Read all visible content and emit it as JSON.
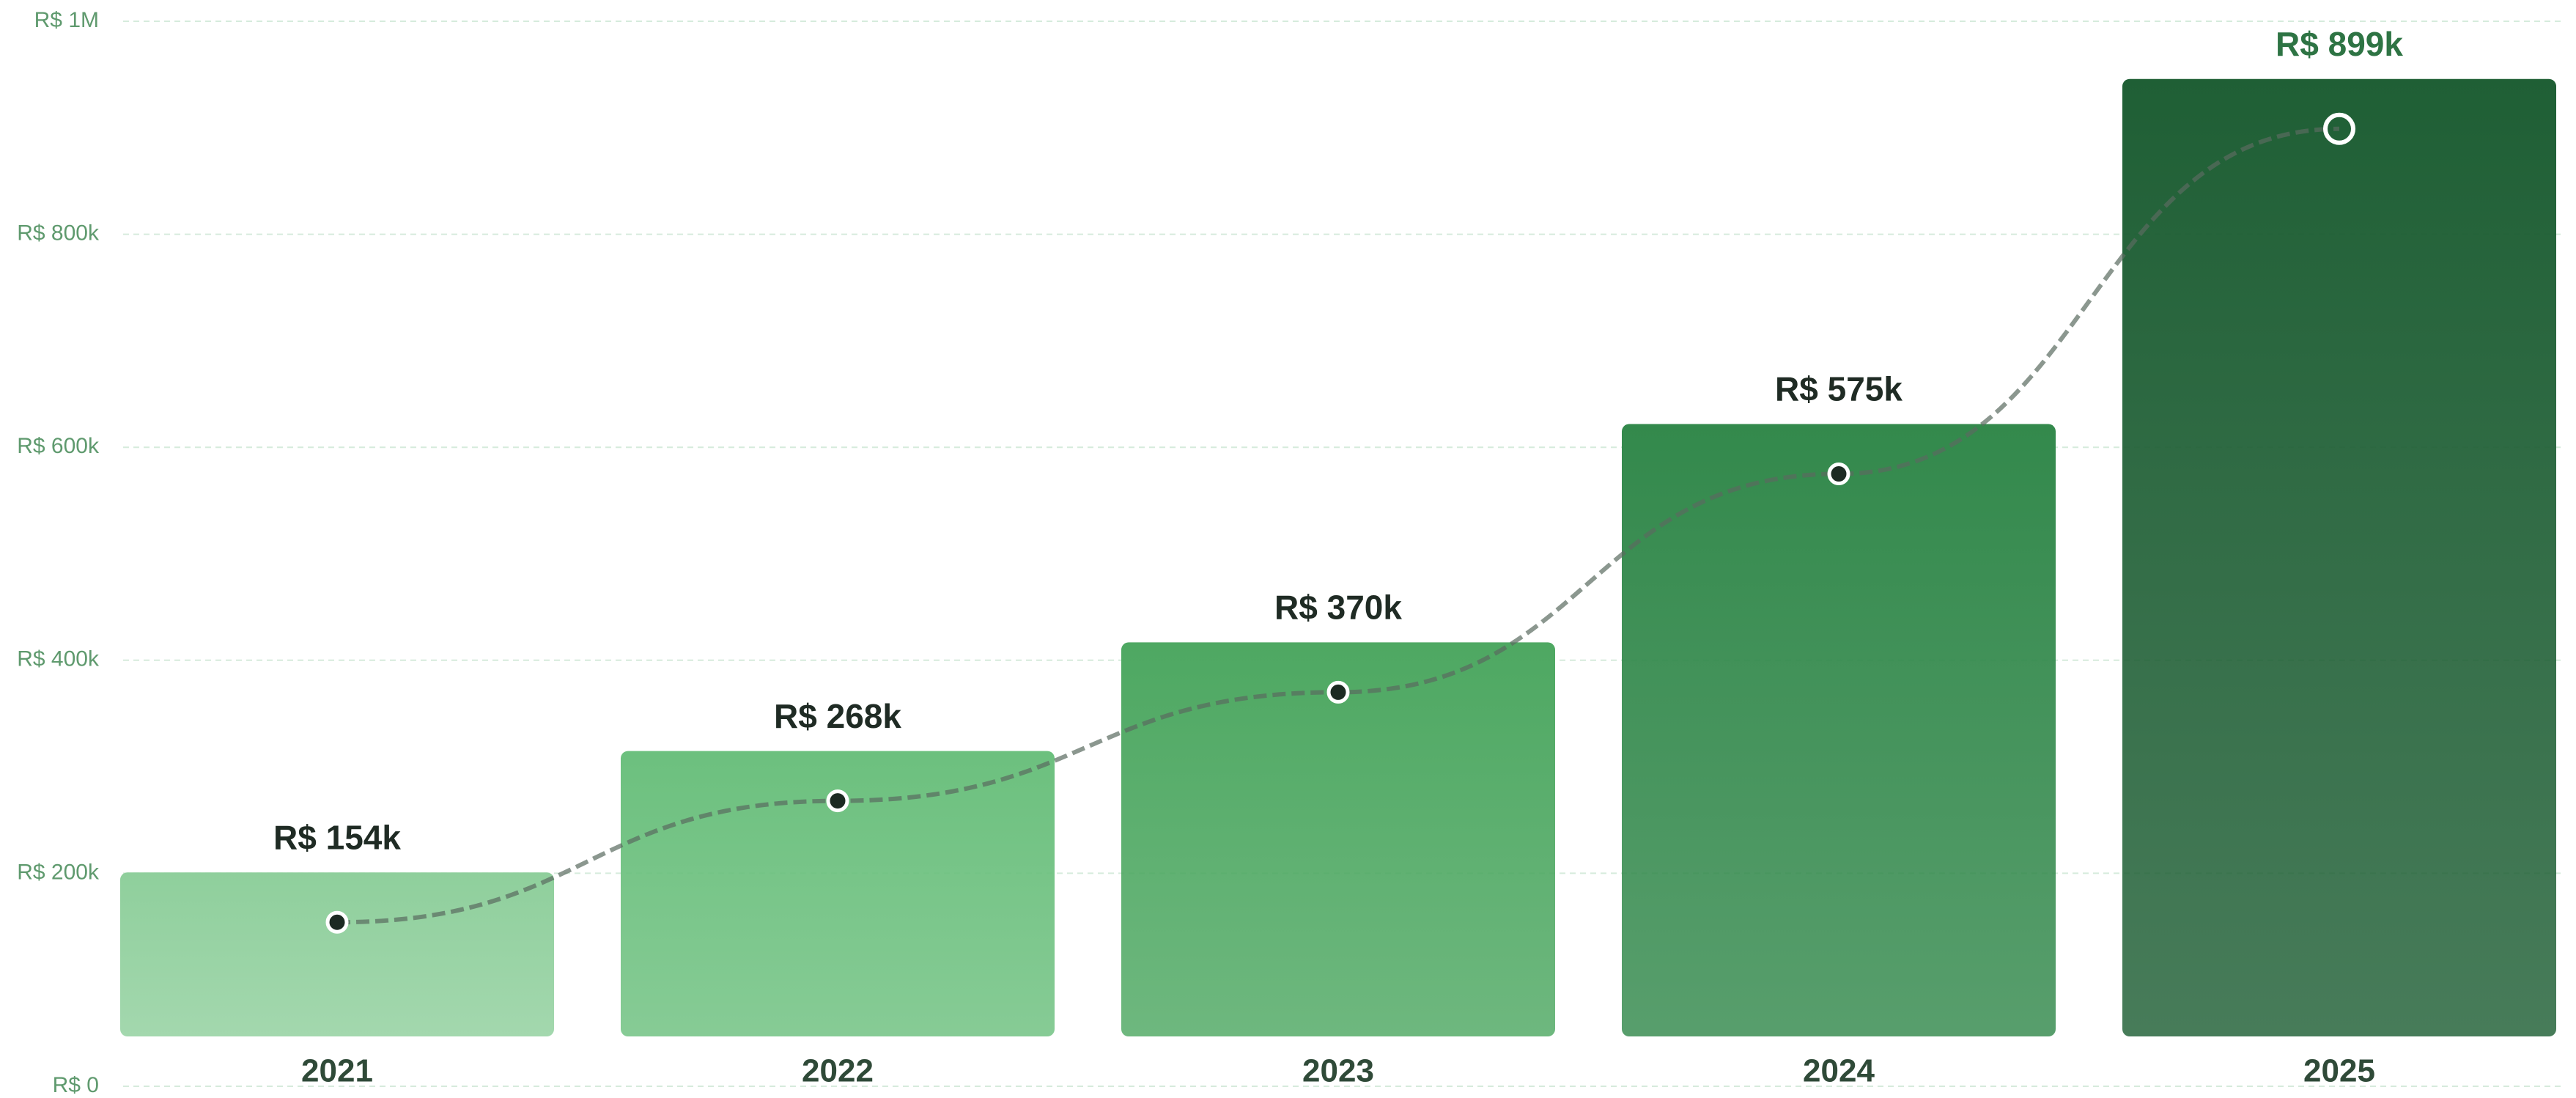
{
  "chart_data": {
    "type": "bar",
    "categories": [
      "2021",
      "2022",
      "2023",
      "2024",
      "2025"
    ],
    "values": [
      154000,
      268000,
      370000,
      575000,
      899000
    ],
    "value_labels": [
      "R$ 154k",
      "R$ 268k",
      "R$ 370k",
      "R$ 575k",
      "R$ 899k"
    ],
    "colors": [
      "#8fcf9c",
      "#6cc07e",
      "#4ea862",
      "#33894c",
      "#1f5f35"
    ],
    "line_color": "#5a6b60",
    "ylim": [
      0,
      1000000
    ],
    "yticks": [
      {
        "value": 0,
        "label": "R$ 0"
      },
      {
        "value": 200000,
        "label": "R$ 200k"
      },
      {
        "value": 400000,
        "label": "R$ 400k"
      },
      {
        "value": 600000,
        "label": "R$ 600k"
      },
      {
        "value": 800000,
        "label": "R$ 800k"
      },
      {
        "value": 1000000,
        "label": "R$ 1M"
      }
    ],
    "grid": true
  }
}
